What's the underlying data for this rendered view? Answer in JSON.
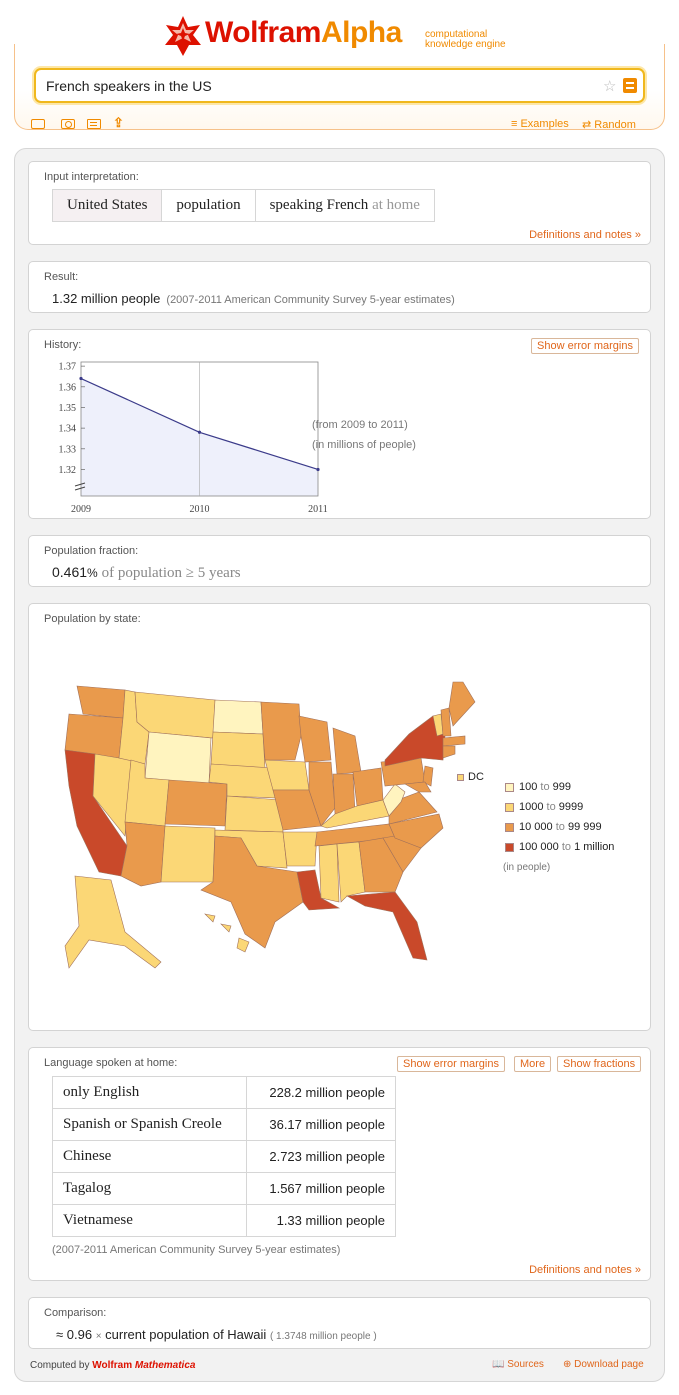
{
  "logo": {
    "brand_a": "Wolfram",
    "brand_b": "Alpha",
    "tagline_1": "computational",
    "tagline_2": "knowledge engine"
  },
  "search": {
    "query": "French speakers in the US"
  },
  "toolbar": {
    "examples": "≡ Examples",
    "random": "⇄ Random"
  },
  "pods": {
    "input": {
      "title": "Input interpretation:",
      "cells": [
        "United States",
        "population",
        "speaking French"
      ],
      "cell_suffix": "at home",
      "def_link": "Definitions and notes »"
    },
    "result": {
      "title": "Result:",
      "value": "1.32 million people",
      "note": "(2007-2011 American Community Survey 5-year estimates)"
    },
    "history": {
      "title": "History:",
      "button": "Show error margins",
      "note_1": "(from 2009 to 2011)",
      "note_2": "(in millions of people)"
    },
    "fraction": {
      "title": "Population fraction:",
      "value": "0.461",
      "unit": "%",
      "rest": "of population ≥ 5 years"
    },
    "map": {
      "title": "Population by state:",
      "dc": "DC",
      "legend": [
        {
          "from": "100",
          "to": "999",
          "color": "#fff4bf"
        },
        {
          "from": "1000",
          "to": "9999",
          "color": "#fbd776"
        },
        {
          "from": "10 000",
          "to": "99 999",
          "color": "#e99a4c"
        },
        {
          "from": "100 000",
          "to": "1 million",
          "color": "#c9492a"
        }
      ],
      "legend_to": "to",
      "unit": "(in people)"
    },
    "language": {
      "title": "Language spoken at home:",
      "buttons": [
        "Show error margins",
        "More",
        "Show fractions"
      ],
      "rows": [
        {
          "lang": "only English",
          "value": "228.2 million people"
        },
        {
          "lang": "Spanish or Spanish Creole",
          "value": "36.17 million people"
        },
        {
          "lang": "Chinese",
          "value": "2.723 million people"
        },
        {
          "lang": "Tagalog",
          "value": "1.567 million people"
        },
        {
          "lang": "Vietnamese",
          "value": "1.33 million people"
        }
      ],
      "note": "(2007-2011 American Community Survey 5-year estimates)",
      "def_link": "Definitions and notes »"
    },
    "comparison": {
      "title": "Comparison:",
      "approx": "≈ 0.96",
      "times": "×",
      "text": "current population of Hawaii",
      "paren": "( 1.3748 million people )"
    }
  },
  "chart_data": {
    "type": "line",
    "x": [
      2009,
      2010,
      2011
    ],
    "y": [
      1.364,
      1.338,
      1.32
    ],
    "x_ticks": [
      "2009",
      "2010",
      "2011"
    ],
    "y_ticks": [
      "1.37",
      "1.36",
      "1.35",
      "1.34",
      "1.33",
      "1.32"
    ],
    "ylim": [
      1.312,
      1.372
    ],
    "line_color": "#3b3b8a",
    "fill_color": "#eef0fb"
  },
  "footer": {
    "computed_by": "Computed by",
    "brand": "Wolfram",
    "product": "Mathematica",
    "sources": "Sources",
    "download": "Download page"
  }
}
